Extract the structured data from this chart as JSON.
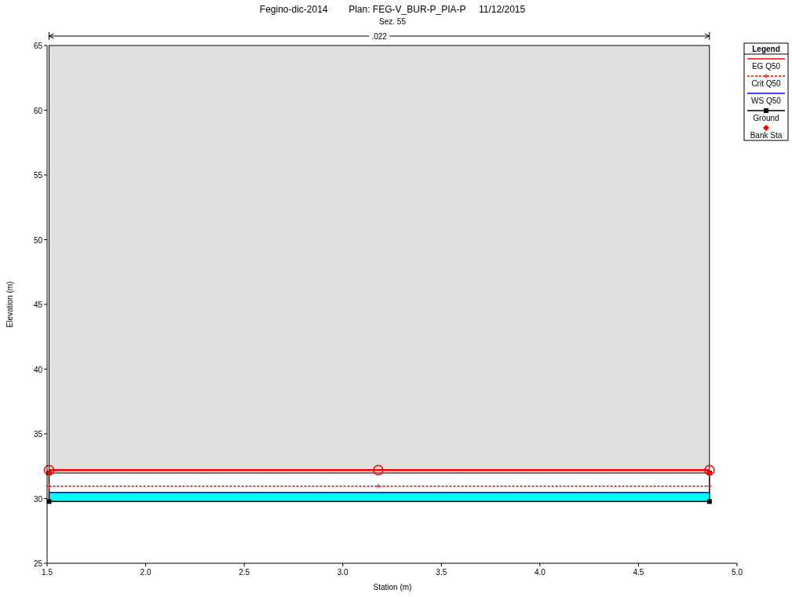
{
  "chart_data": {
    "type": "line",
    "title": "Fegino-dic-2014        Plan: FEG-V_BUR-P_PIA-P     11/12/2015",
    "subtitle": "Sez. 55",
    "xlabel": "Station (m)",
    "ylabel": "Elevation (m)",
    "legend_title": "Legend",
    "legend": "top right",
    "grid": false,
    "annotations": [
      ".022"
    ],
    "xlim": [
      1.5,
      5.0
    ],
    "xticks": [
      1.5,
      {
        "value": 2,
        "label": "2.0"
      },
      2.5,
      {
        "value": 3,
        "label": "3.0"
      },
      3.5,
      {
        "value": 4,
        "label": "4.0"
      },
      4.5,
      {
        "value": 5,
        "label": "5.0"
      }
    ],
    "ylim": [
      25,
      65
    ],
    "yticks": [
      25,
      30,
      35,
      40,
      45,
      50,
      55,
      60,
      65
    ],
    "series": [
      {
        "type": "scatter",
        "name": "Bank Sta",
        "color": "#ff0000",
        "marker": "diamond",
        "x": [
          1.51,
          4.86
        ],
        "values": [
          31.97,
          31.97
        ]
      },
      {
        "type": "line",
        "name": "Ground",
        "color": "#000000",
        "marker": "square",
        "x": [
          1.51,
          1.51,
          4.86,
          4.86
        ],
        "values": [
          31.97,
          29.77,
          29.77,
          31.97
        ]
      },
      {
        "type": "line",
        "name": "WS Q50",
        "color": "#0000ff",
        "x": [
          1.51,
          4.86
        ],
        "values": [
          30.47,
          30.47
        ]
      },
      {
        "type": "line",
        "name": "Crit Q50",
        "color": "#ff0000",
        "line_style": "dashed",
        "x": [
          1.51,
          3.18,
          4.86
        ],
        "values": [
          30.96,
          30.96,
          30.96
        ],
        "marker": "cross"
      },
      {
        "name": "EG Q50",
        "color": "#ff0000",
        "x": [
          1.51,
          3.18,
          4.86
        ],
        "values": [
          32.2,
          32.2,
          32.2
        ],
        "marker": "circle"
      }
    ]
  }
}
